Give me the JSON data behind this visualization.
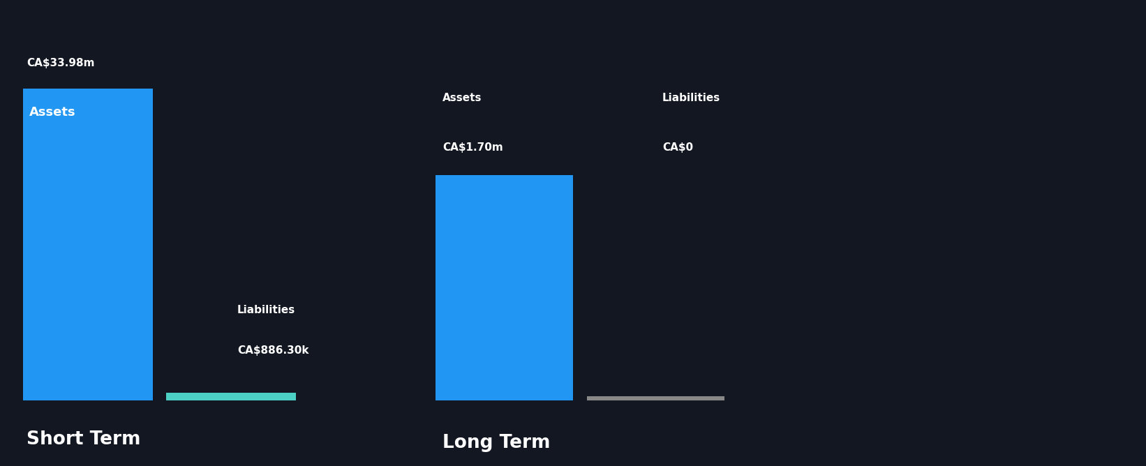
{
  "background_color": "#131722",
  "text_color": "#ffffff",
  "bar_color_blue": "#2196F3",
  "bar_color_teal": "#4DD0C4",
  "bar_color_gray": "#888888",
  "short_term_assets": 33980000,
  "short_term_liabilities": 886300,
  "long_term_assets": 1700000,
  "long_term_liabilities": 0,
  "short_term_assets_label": "CA$33.98m",
  "short_term_liabilities_label": "CA$886.30k",
  "long_term_assets_label": "CA$1.70m",
  "long_term_liabilities_label": "CA$0",
  "short_term_label": "Short Term",
  "long_term_label": "Long Term",
  "assets_label": "Assets",
  "liabilities_label": "Liabilities"
}
